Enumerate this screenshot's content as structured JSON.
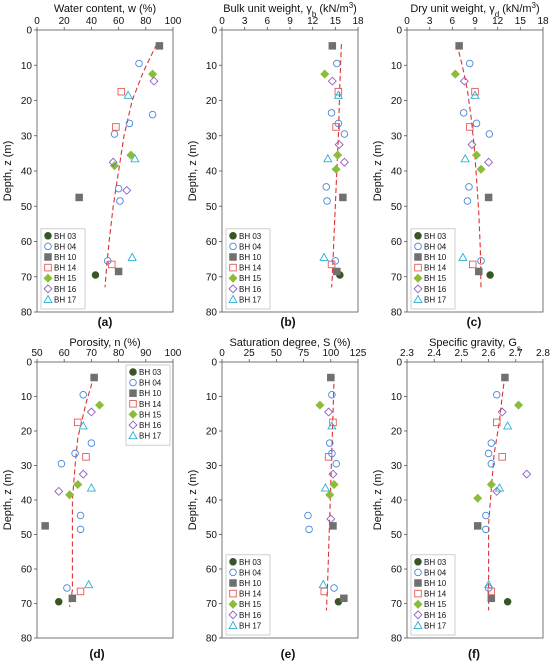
{
  "figure": {
    "legend_entries": [
      "BH 03",
      "BH 04",
      "BH 10",
      "BH 14",
      "BH 15",
      "BH 16",
      "BH 17"
    ],
    "series_styles": [
      {
        "name": "BH 03",
        "shape": "circle",
        "fill": "#375623",
        "stroke": "#375623"
      },
      {
        "name": "BH 04",
        "shape": "circle",
        "fill": "none",
        "stroke": "#4a86d8"
      },
      {
        "name": "BH 10",
        "shape": "square",
        "fill": "#707070",
        "stroke": "#707070"
      },
      {
        "name": "BH 14",
        "shape": "square",
        "fill": "none",
        "stroke": "#e05c5c"
      },
      {
        "name": "BH 15",
        "shape": "diamond",
        "fill": "#8cbd3a",
        "stroke": "#8cbd3a"
      },
      {
        "name": "BH 16",
        "shape": "diamond",
        "fill": "none",
        "stroke": "#8e60c0"
      },
      {
        "name": "BH 17",
        "shape": "triangle",
        "fill": "none",
        "stroke": "#2ab0d6"
      }
    ],
    "trend_color": "#e03030"
  },
  "chart_data": [
    {
      "panel": "(a)",
      "type": "scatter",
      "xlabel": "Water content, w (%)",
      "ylabel": "Depth, z (m)",
      "xlim": [
        0,
        100
      ],
      "xticks": [
        "0",
        "20",
        "40",
        "60",
        "80",
        "100"
      ],
      "ylim": [
        0,
        80
      ],
      "yticks": [
        "0",
        "10",
        "20",
        "30",
        "40",
        "50",
        "60",
        "70",
        "80"
      ],
      "legend_position": "bottom-left",
      "series": [
        {
          "name": "BH 03",
          "points": [
            [
              43,
              69.5
            ]
          ]
        },
        {
          "name": "BH 04",
          "points": [
            [
              75,
              9.5
            ],
            [
              68,
              26.5
            ],
            [
              57,
              29.5
            ],
            [
              85,
              24
            ],
            [
              60,
              45
            ],
            [
              61,
              48.5
            ],
            [
              52,
              65.5
            ]
          ]
        },
        {
          "name": "BH 10",
          "points": [
            [
              90,
              4.5
            ],
            [
              31,
              47.5
            ],
            [
              60,
              68.5
            ]
          ]
        },
        {
          "name": "BH 14",
          "points": [
            [
              62,
              17.5
            ],
            [
              58,
              27.5
            ],
            [
              55,
              66.5
            ]
          ]
        },
        {
          "name": "BH 15",
          "points": [
            [
              85,
              12.5
            ],
            [
              69,
              35.5
            ],
            [
              57,
              38.5
            ]
          ]
        },
        {
          "name": "BH 16",
          "points": [
            [
              86,
              14.5
            ],
            [
              56,
              37.5
            ],
            [
              66,
              45.5
            ]
          ]
        },
        {
          "name": "BH 17",
          "points": [
            [
              67,
              18.5
            ],
            [
              72,
              36.5
            ],
            [
              70,
              64.5
            ]
          ]
        }
      ],
      "trend": [
        [
          88,
          4
        ],
        [
          78,
          12
        ],
        [
          70,
          20
        ],
        [
          64,
          30
        ],
        [
          60,
          40
        ],
        [
          56,
          50
        ],
        [
          53,
          60
        ],
        [
          51,
          68
        ],
        [
          50,
          73
        ]
      ]
    },
    {
      "panel": "(b)",
      "type": "scatter",
      "xlabel": "Bulk unit weight, γb (kN/m3)",
      "ylabel": "Depth, z (m)",
      "xlim": [
        0,
        18
      ],
      "xticks": [
        "0",
        "3",
        "6",
        "9",
        "12",
        "15",
        "18"
      ],
      "ylim": [
        0,
        80
      ],
      "yticks": [
        "0",
        "10",
        "20",
        "30",
        "40",
        "50",
        "60",
        "70",
        "80"
      ],
      "legend_position": "bottom-left",
      "series": [
        {
          "name": "BH 03",
          "points": [
            [
              15.6,
              69.5
            ]
          ]
        },
        {
          "name": "BH 04",
          "points": [
            [
              15.2,
              9.5
            ],
            [
              14.5,
              23.5
            ],
            [
              15.4,
              26.5
            ],
            [
              16.2,
              29.5
            ],
            [
              13.8,
              44.5
            ],
            [
              13.9,
              48.5
            ],
            [
              15.0,
              65.5
            ]
          ]
        },
        {
          "name": "BH 10",
          "points": [
            [
              14.6,
              4.5
            ],
            [
              16.0,
              47.5
            ],
            [
              15.2,
              68.5
            ]
          ]
        },
        {
          "name": "BH 14",
          "points": [
            [
              15.4,
              17.5
            ],
            [
              15.1,
              27.5
            ],
            [
              14.5,
              66.5
            ]
          ]
        },
        {
          "name": "BH 15",
          "points": [
            [
              13.6,
              12.5
            ],
            [
              15.3,
              35.5
            ],
            [
              15.1,
              39.5
            ]
          ]
        },
        {
          "name": "BH 16",
          "points": [
            [
              14.6,
              14.5
            ],
            [
              15.5,
              32.5
            ],
            [
              16.2,
              37.5
            ]
          ]
        },
        {
          "name": "BH 17",
          "points": [
            [
              15.4,
              18.5
            ],
            [
              14.0,
              36.5
            ],
            [
              13.5,
              64.5
            ]
          ]
        }
      ],
      "trend": [
        [
          15.8,
          4
        ],
        [
          15.6,
          15
        ],
        [
          15.4,
          30
        ],
        [
          15.2,
          40
        ],
        [
          15.0,
          50
        ],
        [
          14.8,
          60
        ],
        [
          14.6,
          70
        ],
        [
          14.5,
          73
        ]
      ]
    },
    {
      "panel": "(c)",
      "type": "scatter",
      "xlabel": "Dry unit weight, γd (kN/m3)",
      "ylabel": "Depth, z (m)",
      "xlim": [
        0,
        18
      ],
      "xticks": [
        "0",
        "3",
        "6",
        "9",
        "12",
        "15",
        "18"
      ],
      "ylim": [
        0,
        80
      ],
      "yticks": [
        "0",
        "10",
        "20",
        "30",
        "40",
        "50",
        "60",
        "70",
        "80"
      ],
      "legend_position": "bottom-left",
      "series": [
        {
          "name": "BH 03",
          "points": [
            [
              11.0,
              69.5
            ]
          ]
        },
        {
          "name": "BH 04",
          "points": [
            [
              8.3,
              9.5
            ],
            [
              7.5,
              23.5
            ],
            [
              9.2,
              26.5
            ],
            [
              10.9,
              29.5
            ],
            [
              8.2,
              44.5
            ],
            [
              8.0,
              48.5
            ],
            [
              9.8,
              65.5
            ]
          ]
        },
        {
          "name": "BH 10",
          "points": [
            [
              6.9,
              4.5
            ],
            [
              10.8,
              47.5
            ],
            [
              9.5,
              68.5
            ]
          ]
        },
        {
          "name": "BH 14",
          "points": [
            [
              9.0,
              17.5
            ],
            [
              8.3,
              27.5
            ],
            [
              8.7,
              66.5
            ]
          ]
        },
        {
          "name": "BH 15",
          "points": [
            [
              6.4,
              12.5
            ],
            [
              9.2,
              35.5
            ],
            [
              9.8,
              39.5
            ]
          ]
        },
        {
          "name": "BH 16",
          "points": [
            [
              7.6,
              14.5
            ],
            [
              8.6,
              32.5
            ],
            [
              10.8,
              37.5
            ]
          ]
        },
        {
          "name": "BH 17",
          "points": [
            [
              9.0,
              18.5
            ],
            [
              7.7,
              36.5
            ],
            [
              7.4,
              64.5
            ]
          ]
        }
      ],
      "trend": [
        [
          6.6,
          4
        ],
        [
          7.3,
          10
        ],
        [
          8.0,
          17
        ],
        [
          8.5,
          25
        ],
        [
          8.9,
          33
        ],
        [
          9.2,
          42
        ],
        [
          9.5,
          52
        ],
        [
          9.7,
          62
        ],
        [
          9.8,
          73
        ]
      ]
    },
    {
      "panel": "(d)",
      "type": "scatter",
      "xlabel": "Porosity, n (%)",
      "ylabel": "Depth, z (m)",
      "xlim": [
        50,
        100
      ],
      "xticks": [
        "50",
        "60",
        "70",
        "80",
        "90",
        "100"
      ],
      "ylim": [
        0,
        80
      ],
      "yticks": [
        "0",
        "10",
        "20",
        "30",
        "40",
        "50",
        "60",
        "70",
        "80"
      ],
      "legend_position": "top-right",
      "series": [
        {
          "name": "BH 03",
          "points": [
            [
              58,
              69.5
            ]
          ]
        },
        {
          "name": "BH 04",
          "points": [
            [
              67,
              9.5
            ],
            [
              70,
              23.5
            ],
            [
              64,
              26.5
            ],
            [
              59,
              29.5
            ],
            [
              66,
              44.5
            ],
            [
              66,
              48.5
            ],
            [
              61,
              65.5
            ]
          ]
        },
        {
          "name": "BH 10",
          "points": [
            [
              71,
              4.5
            ],
            [
              53,
              47.5
            ],
            [
              63,
              68.5
            ]
          ]
        },
        {
          "name": "BH 14",
          "points": [
            [
              65,
              17.5
            ],
            [
              68,
              27.5
            ],
            [
              66,
              66.5
            ]
          ]
        },
        {
          "name": "BH 15",
          "points": [
            [
              73,
              12.5
            ],
            [
              65,
              35.5
            ],
            [
              62,
              38.5
            ]
          ]
        },
        {
          "name": "BH 16",
          "points": [
            [
              70,
              14.5
            ],
            [
              67,
              32.5
            ],
            [
              58,
              37.5
            ]
          ]
        },
        {
          "name": "BH 17",
          "points": [
            [
              67,
              18.5
            ],
            [
              70,
              36.5
            ],
            [
              69,
              64.5
            ]
          ]
        }
      ],
      "trend": [
        [
          71,
          4
        ],
        [
          68,
          12
        ],
        [
          65,
          22
        ],
        [
          64,
          30
        ],
        [
          63,
          40
        ],
        [
          63,
          50
        ],
        [
          63,
          60
        ],
        [
          63,
          66
        ],
        [
          62,
          71
        ]
      ]
    },
    {
      "panel": "(e)",
      "type": "scatter",
      "xlabel": "Saturation degree, S (%)",
      "ylabel": "Depth, z (m)",
      "xlim": [
        0,
        125
      ],
      "xticks": [
        "0",
        "25",
        "50",
        "75",
        "100",
        "125"
      ],
      "ylim": [
        0,
        80
      ],
      "yticks": [
        "0",
        "10",
        "20",
        "30",
        "40",
        "50",
        "60",
        "70",
        "80"
      ],
      "legend_position": "bottom-left",
      "series": [
        {
          "name": "BH 03",
          "points": [
            [
              107,
              69.5
            ]
          ]
        },
        {
          "name": "BH 04",
          "points": [
            [
              101,
              9.5
            ],
            [
              99,
              23.5
            ],
            [
              101,
              26.5
            ],
            [
              105,
              29.5
            ],
            [
              79,
              44.5
            ],
            [
              80,
              48.5
            ],
            [
              103,
              65.5
            ]
          ]
        },
        {
          "name": "BH 10",
          "points": [
            [
              100,
              4.5
            ],
            [
              102,
              47.5
            ],
            [
              112,
              68.5
            ]
          ]
        },
        {
          "name": "BH 14",
          "points": [
            [
              102,
              17.5
            ],
            [
              98,
              27.5
            ],
            [
              94,
              66.5
            ]
          ]
        },
        {
          "name": "BH 15",
          "points": [
            [
              90,
              12.5
            ],
            [
              103,
              35.5
            ],
            [
              99,
              38.5
            ]
          ]
        },
        {
          "name": "BH 16",
          "points": [
            [
              98,
              14.5
            ],
            [
              102,
              32.5
            ],
            [
              100,
              45.5
            ]
          ]
        },
        {
          "name": "BH 17",
          "points": [
            [
              101,
              18.5
            ],
            [
              95,
              36.5
            ],
            [
              93,
              64.5
            ]
          ]
        }
      ],
      "trend": [
        [
          103,
          4
        ],
        [
          102,
          15
        ],
        [
          101,
          25
        ],
        [
          100,
          35
        ],
        [
          99,
          45
        ],
        [
          98,
          55
        ],
        [
          97,
          65
        ],
        [
          96,
          72
        ]
      ]
    },
    {
      "panel": "(f)",
      "type": "scatter",
      "xlabel": "Specific gravity, Gs",
      "ylabel": "Depth, z (m)",
      "xlim": [
        2.3,
        2.8
      ],
      "xticks": [
        "2.3",
        "2.4",
        "2.5",
        "2.6",
        "2.7",
        "2.8"
      ],
      "ylim": [
        0,
        80
      ],
      "yticks": [
        "0",
        "10",
        "20",
        "30",
        "40",
        "50",
        "60",
        "70",
        "80"
      ],
      "legend_position": "bottom-left",
      "series": [
        {
          "name": "BH 03",
          "points": [
            [
              2.67,
              69.5
            ]
          ]
        },
        {
          "name": "BH 04",
          "points": [
            [
              2.63,
              9.5
            ],
            [
              2.61,
              23.5
            ],
            [
              2.6,
              26.5
            ],
            [
              2.61,
              29.5
            ],
            [
              2.59,
              44.5
            ],
            [
              2.59,
              48.5
            ],
            [
              2.6,
              65.5
            ]
          ]
        },
        {
          "name": "BH 10",
          "points": [
            [
              2.66,
              4.5
            ],
            [
              2.56,
              47.5
            ],
            [
              2.61,
              68.5
            ]
          ]
        },
        {
          "name": "BH 14",
          "points": [
            [
              2.63,
              17.5
            ],
            [
              2.65,
              27.5
            ],
            [
              2.61,
              66.5
            ]
          ]
        },
        {
          "name": "BH 15",
          "points": [
            [
              2.71,
              12.5
            ],
            [
              2.61,
              35.5
            ],
            [
              2.56,
              39.5
            ]
          ]
        },
        {
          "name": "BH 16",
          "points": [
            [
              2.65,
              14.5
            ],
            [
              2.74,
              32.5
            ],
            [
              2.63,
              37.5
            ]
          ]
        },
        {
          "name": "BH 17",
          "points": [
            [
              2.67,
              18.5
            ],
            [
              2.64,
              36.5
            ],
            [
              2.6,
              64.5
            ]
          ]
        }
      ],
      "trend": [
        [
          2.66,
          4
        ],
        [
          2.65,
          10
        ],
        [
          2.64,
          17
        ],
        [
          2.62,
          27
        ],
        [
          2.61,
          37
        ],
        [
          2.6,
          47
        ],
        [
          2.6,
          57
        ],
        [
          2.6,
          66
        ],
        [
          2.6,
          72
        ]
      ]
    }
  ]
}
